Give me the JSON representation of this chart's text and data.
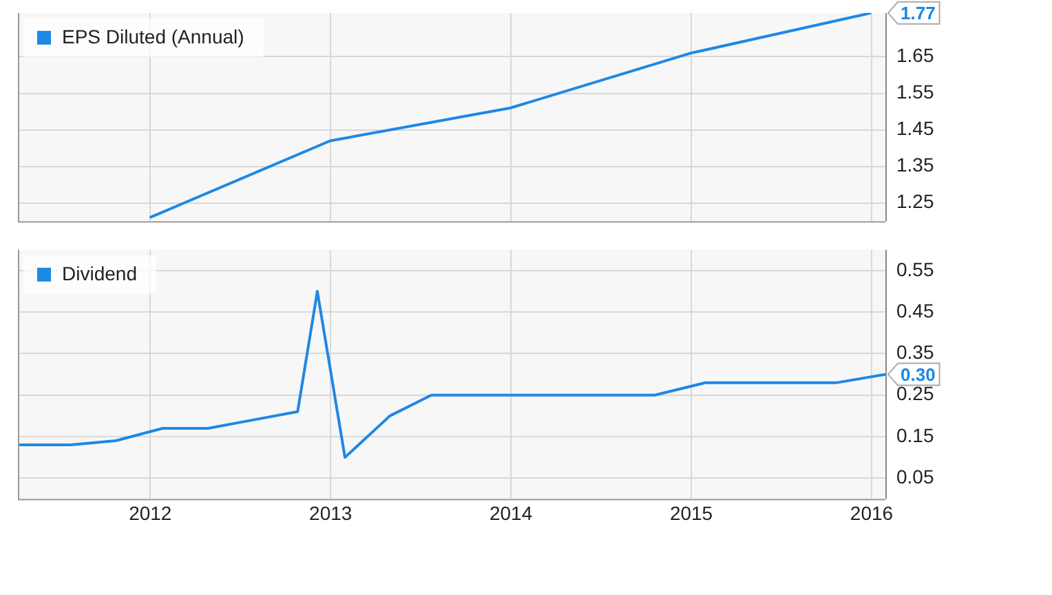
{
  "chart_data": [
    {
      "type": "line",
      "x": [
        "2011-12-31",
        "2012-12-31",
        "2013-12-31",
        "2014-12-31",
        "2015-12-31"
      ],
      "series": [
        {
          "name": "EPS Diluted (Annual)",
          "color": "#1e88e5",
          "values": [
            1.21,
            1.42,
            1.51,
            1.66,
            1.77
          ],
          "value_labels": [
            null,
            null,
            null,
            null,
            "1.77"
          ]
        }
      ],
      "xlim": [
        "2011-04-08",
        "2016-01-29"
      ],
      "xticks": [
        "2012",
        "2013",
        "2014",
        "2015",
        "2016"
      ],
      "ylim": [
        1.2,
        1.77
      ],
      "yticks": [
        1.25,
        1.35,
        1.45,
        1.55,
        1.65
      ],
      "grid": true,
      "legend": "top left",
      "tick_labels": "y",
      "marker": "none"
    },
    {
      "type": "line",
      "x": [
        "2011-04-08",
        "2011-07-23",
        "2011-10-23",
        "2012-01-26",
        "2012-04-27",
        "2012-07-27",
        "2012-10-26",
        "2012-12-05",
        "2013-01-30",
        "2013-05-01",
        "2013-07-24",
        "2014-10-19",
        "2015-01-30",
        "2015-10-23",
        "2016-01-29"
      ],
      "series": [
        {
          "name": "Dividend",
          "color": "#1e88e5",
          "values": [
            0.13,
            0.13,
            0.14,
            0.17,
            0.17,
            0.19,
            0.21,
            0.5,
            0.1,
            0.2,
            0.25,
            0.25,
            0.28,
            0.28,
            0.3
          ],
          "value_labels": [
            null,
            null,
            null,
            null,
            null,
            null,
            null,
            null,
            null,
            null,
            null,
            null,
            null,
            null,
            "0.30"
          ]
        }
      ],
      "xlim": [
        "2011-04-08",
        "2016-01-29"
      ],
      "xticks": [
        "2012",
        "2013",
        "2014",
        "2015",
        "2016"
      ],
      "ylim": [
        0,
        0.6
      ],
      "yticks": [
        0.05,
        0.15,
        0.25,
        0.35,
        0.45,
        0.55
      ],
      "grid": true,
      "legend": "top left",
      "marker": "none"
    }
  ]
}
